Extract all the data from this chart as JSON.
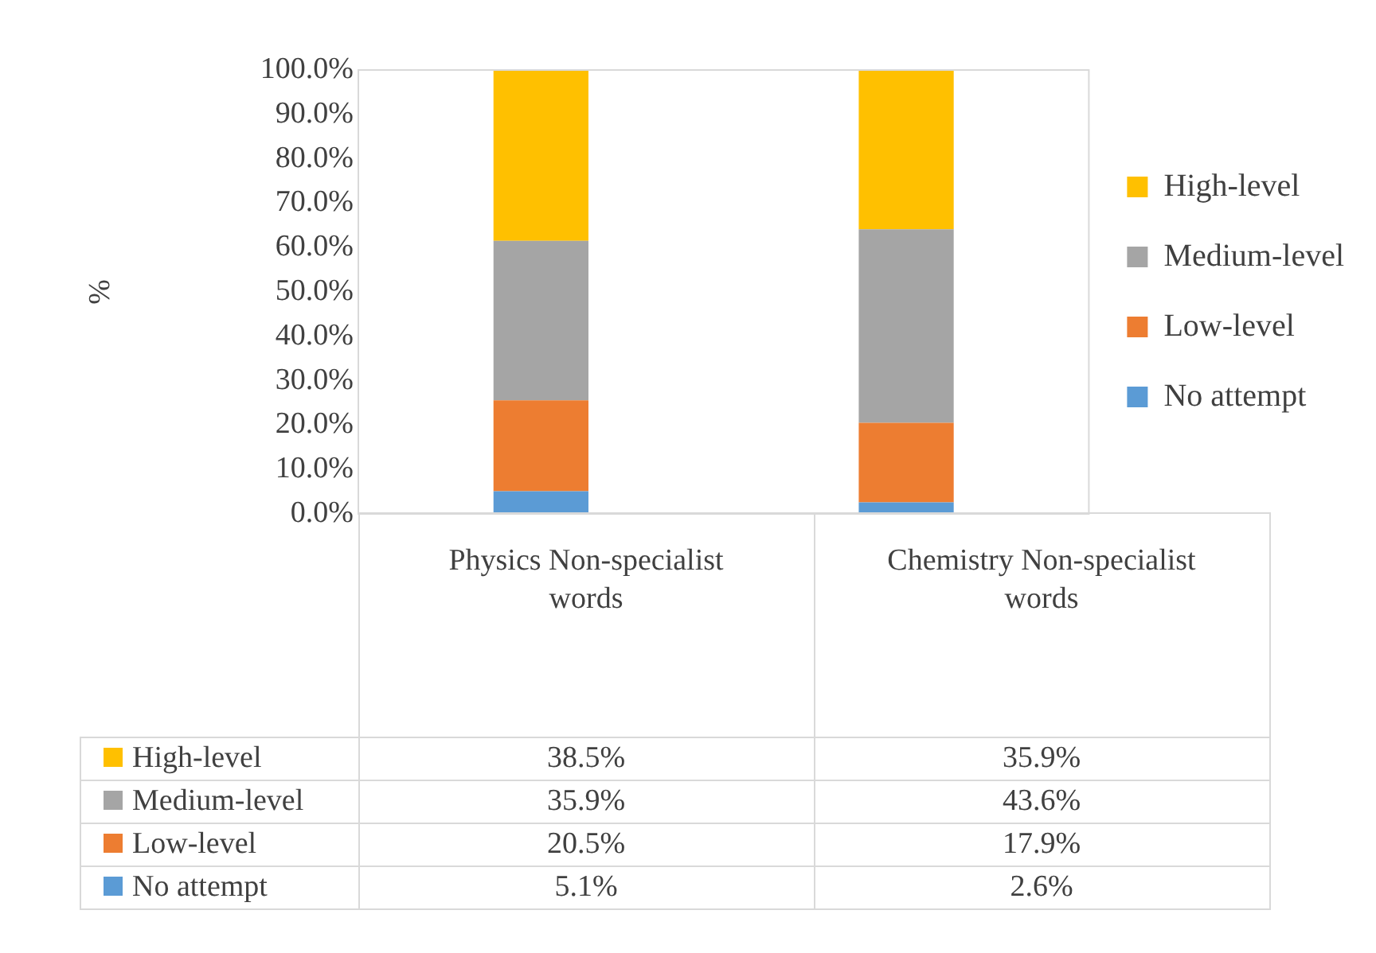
{
  "chart_data": {
    "type": "bar",
    "stacked": true,
    "ylabel": "%",
    "categories": [
      "Physics Non-specialist words",
      "Chemistry Non-specialist words"
    ],
    "series": [
      {
        "name": "No attempt",
        "color": "#5b9bd5",
        "values": [
          5.1,
          2.6
        ],
        "value_labels": [
          "5.1%",
          "2.6%"
        ]
      },
      {
        "name": "Low-level",
        "color": "#ed7d31",
        "values": [
          20.5,
          17.9
        ],
        "value_labels": [
          "20.5%",
          "17.9%"
        ]
      },
      {
        "name": "Medium-level",
        "color": "#a5a5a5",
        "values": [
          35.9,
          43.6
        ],
        "value_labels": [
          "35.9%",
          "43.6%"
        ]
      },
      {
        "name": "High-level",
        "color": "#ffc000",
        "values": [
          38.5,
          35.9
        ],
        "value_labels": [
          "38.5%",
          "35.9%"
        ]
      }
    ],
    "ylim": [
      0,
      100
    ],
    "yticks": [
      {
        "value": 0,
        "label": "0.0%"
      },
      {
        "value": 10,
        "label": "10.0%"
      },
      {
        "value": 20,
        "label": "20.0%"
      },
      {
        "value": 30,
        "label": "30.0%"
      },
      {
        "value": 40,
        "label": "40.0%"
      },
      {
        "value": 50,
        "label": "50.0%"
      },
      {
        "value": 60,
        "label": "60.0%"
      },
      {
        "value": 70,
        "label": "70.0%"
      },
      {
        "value": 80,
        "label": "80.0%"
      },
      {
        "value": 90,
        "label": "90.0%"
      },
      {
        "value": 100,
        "label": "100.0%"
      }
    ],
    "grid": false,
    "legend": "right",
    "data_labels": true
  }
}
